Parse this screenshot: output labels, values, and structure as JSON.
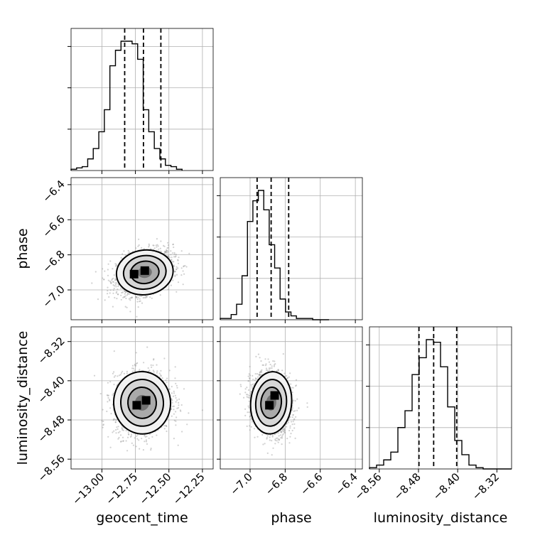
{
  "chart_data": {
    "type": "corner",
    "parameters": [
      {
        "name": "geocent_time",
        "label": "geocent_time",
        "range": [
          -13.23,
          -12.17
        ],
        "ticks": [
          -13.0,
          -12.75,
          -12.5,
          -12.25
        ],
        "tick_labels": [
          "−13.00",
          "−12.75",
          "−12.50",
          "−12.25"
        ],
        "quantiles": [
          -12.83,
          -12.69,
          -12.56
        ],
        "hist": {
          "edges_start": -13.23,
          "bin_width": 0.0414,
          "counts": [
            0.01,
            0.02,
            0.03,
            0.09,
            0.17,
            0.3,
            0.47,
            0.81,
            0.93,
            1.0,
            1.0,
            0.98,
            0.86,
            0.47,
            0.3,
            0.17,
            0.09,
            0.04,
            0.03,
            0.01
          ]
        }
      },
      {
        "name": "phase",
        "label": "phase",
        "range": [
          -7.17,
          -6.36
        ],
        "ticks": [
          -7.0,
          -6.8,
          -6.6,
          -6.4
        ],
        "tick_labels": [
          "−7.0",
          "−6.8",
          "−6.6",
          "−6.4"
        ],
        "quantiles": [
          -6.96,
          -6.88,
          -6.78
        ],
        "hist": {
          "edges_start": -7.17,
          "bin_width": 0.031,
          "counts": [
            0.01,
            0.01,
            0.04,
            0.12,
            0.34,
            0.76,
            0.92,
            1.0,
            0.85,
            0.58,
            0.4,
            0.16,
            0.06,
            0.03,
            0.01,
            0.01,
            0.01,
            0.0,
            0.0,
            0.0
          ]
        }
      },
      {
        "name": "luminosity_distance",
        "label": "luminosity_distance",
        "range": [
          -8.58,
          -8.29
        ],
        "ticks": [
          -8.56,
          -8.48,
          -8.4,
          -8.32
        ],
        "tick_labels": [
          "−8.56",
          "−8.48",
          "−8.40",
          "−8.32"
        ],
        "quantiles": [
          -8.479,
          -8.449,
          -8.402
        ],
        "hist": {
          "edges_start": -8.58,
          "bin_width": 0.0145,
          "counts": [
            0.01,
            0.03,
            0.07,
            0.13,
            0.32,
            0.45,
            0.73,
            0.86,
            1.0,
            0.98,
            0.79,
            0.48,
            0.22,
            0.11,
            0.03,
            0.01,
            0.0,
            0.0,
            0.0,
            0.0
          ]
        }
      }
    ],
    "pairs": [
      {
        "x": "geocent_time",
        "y": "phase",
        "center": [
          -12.68,
          -6.9
        ],
        "sigma": [
          0.1,
          0.06
        ],
        "correlation": 0.3,
        "contour_levels_sigma": [
          0.5,
          1.0,
          1.5,
          2.0
        ],
        "density_peak": [
          [
            -12.76,
            -6.91
          ],
          [
            -12.68,
            -6.89
          ]
        ]
      },
      {
        "x": "geocent_time",
        "y": "luminosity_distance",
        "center": [
          -12.7,
          -8.445
        ],
        "sigma": [
          0.1,
          0.03
        ],
        "correlation": 0.1,
        "contour_levels_sigma": [
          0.5,
          1.0,
          1.5,
          2.0
        ],
        "density_peak": [
          [
            -12.74,
            -8.45
          ],
          [
            -12.67,
            -8.44
          ]
        ]
      },
      {
        "x": "phase",
        "y": "luminosity_distance",
        "center": [
          -6.88,
          -8.445
        ],
        "sigma": [
          0.055,
          0.03
        ],
        "correlation": -0.1,
        "contour_levels_sigma": [
          0.5,
          1.0,
          1.5,
          2.0
        ],
        "density_peak": [
          [
            -6.86,
            -8.43
          ],
          [
            -6.89,
            -8.45
          ]
        ]
      }
    ],
    "axis_labels": {
      "x": [
        "geocent_time",
        "phase",
        "luminosity_distance"
      ],
      "y": [
        "phase",
        "luminosity_distance"
      ]
    },
    "grid": true,
    "quantile_line_style": "dashed"
  }
}
